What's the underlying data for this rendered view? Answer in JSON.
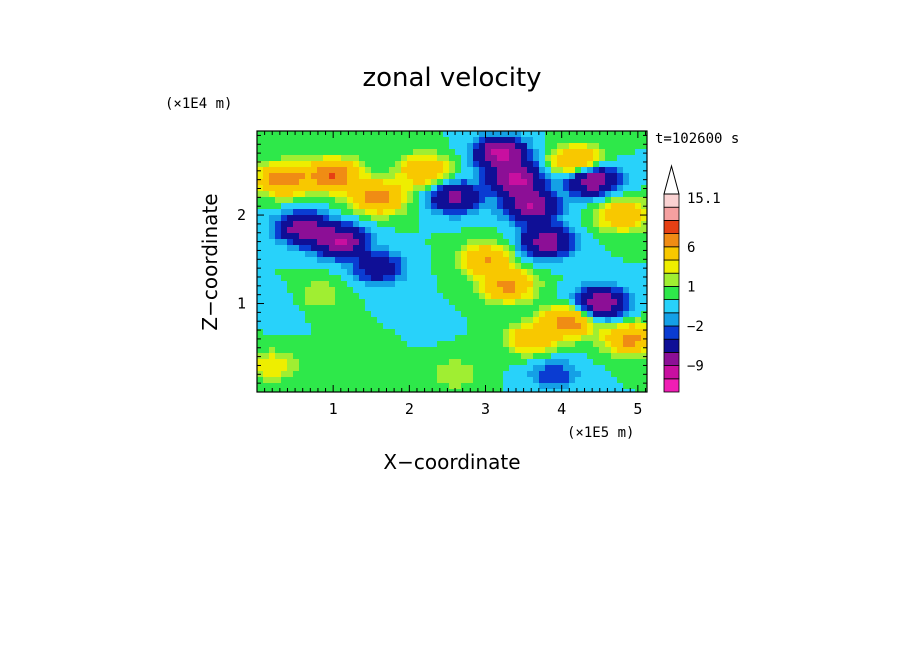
{
  "chart_data": {
    "type": "heatmap",
    "title": "zonal velocity",
    "xlabel": "X−coordinate",
    "ylabel": "Z−coordinate",
    "x_unit": "(×1E5 m)",
    "y_unit": "(×1E4 m)",
    "time_label": "t=102600 s",
    "xlim": [
      0,
      5.12
    ],
    "ylim": [
      0,
      2.95
    ],
    "x_ticks": [
      1,
      2,
      3,
      4,
      5
    ],
    "y_ticks": [
      1,
      2
    ],
    "grid": false,
    "colorbar": {
      "levels": [
        -15,
        -12,
        -9,
        -6,
        -3,
        -2,
        -1,
        0,
        1,
        2,
        3,
        6,
        9,
        12,
        15.1
      ],
      "labels": [
        "15.1",
        "6",
        "1",
        "−2",
        "−9"
      ],
      "label_values": [
        15.1,
        6,
        1,
        -2,
        -9
      ],
      "colors": [
        "#f01eb4",
        "#c80fa0",
        "#8c0f96",
        "#0f0f96",
        "#0a3cd2",
        "#14a0e6",
        "#28d2fa",
        "#2ee84a",
        "#a0ee32",
        "#eeee00",
        "#f8c800",
        "#f08c14",
        "#e64014",
        "#f5a0a0",
        "#fad2d2"
      ],
      "extend": "max"
    },
    "field_features": [
      {
        "x": 0.35,
        "y": 2.4,
        "value": 8
      },
      {
        "x": 1.0,
        "y": 2.45,
        "value": 9
      },
      {
        "x": 1.6,
        "y": 2.2,
        "value": 8
      },
      {
        "x": 0.6,
        "y": 1.85,
        "value": -8
      },
      {
        "x": 1.1,
        "y": 1.7,
        "value": -9
      },
      {
        "x": 1.6,
        "y": 1.4,
        "value": -5
      },
      {
        "x": 2.2,
        "y": 2.5,
        "value": 6
      },
      {
        "x": 2.6,
        "y": 2.2,
        "value": -7
      },
      {
        "x": 0.3,
        "y": 1.0,
        "value": -1
      },
      {
        "x": 0.8,
        "y": 1.1,
        "value": 2
      },
      {
        "x": 1.5,
        "y": 0.6,
        "value": 1
      },
      {
        "x": 2.0,
        "y": 0.8,
        "value": -1
      },
      {
        "x": 3.2,
        "y": 2.7,
        "value": -10
      },
      {
        "x": 3.4,
        "y": 2.4,
        "value": -10
      },
      {
        "x": 3.6,
        "y": 2.1,
        "value": -9
      },
      {
        "x": 3.8,
        "y": 1.7,
        "value": -8
      },
      {
        "x": 3.0,
        "y": 1.5,
        "value": 6
      },
      {
        "x": 3.3,
        "y": 1.2,
        "value": 7
      },
      {
        "x": 3.6,
        "y": 0.6,
        "value": 5
      },
      {
        "x": 4.2,
        "y": 2.6,
        "value": 7
      },
      {
        "x": 4.4,
        "y": 2.4,
        "value": -9
      },
      {
        "x": 4.8,
        "y": 2.0,
        "value": 6
      },
      {
        "x": 4.5,
        "y": 1.0,
        "value": -9
      },
      {
        "x": 4.1,
        "y": 0.8,
        "value": 8
      },
      {
        "x": 4.9,
        "y": 0.6,
        "value": 7
      },
      {
        "x": 2.6,
        "y": 0.2,
        "value": 2
      },
      {
        "x": 3.9,
        "y": 0.2,
        "value": -3
      },
      {
        "x": 0.2,
        "y": 0.3,
        "value": 3
      }
    ]
  }
}
